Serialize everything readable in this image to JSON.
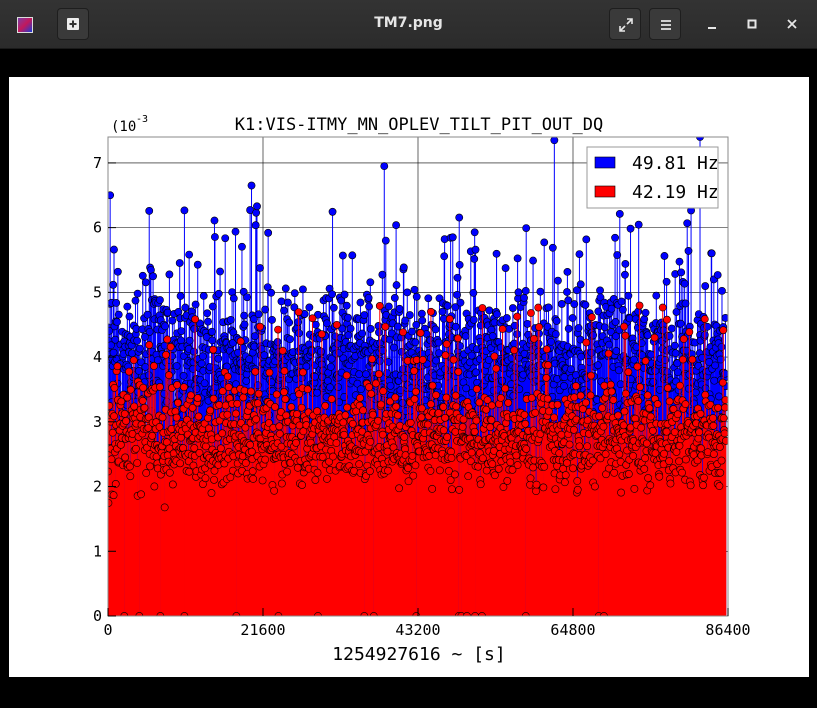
{
  "window": {
    "title": "TM7.png",
    "icons": {
      "app": "image-viewer-icon",
      "new": "new-tab-icon",
      "fullscreen": "fullscreen-icon",
      "menu": "hamburger-menu-icon",
      "minimize": "minimize-icon",
      "maximize": "maximize-icon",
      "close": "close-icon"
    }
  },
  "chart_data": {
    "type": "scatter",
    "title": "K1:VIS-ITMY_MN_OPLEV_TILT_PIT_OUT_DQ",
    "xlabel": "1254927616 ~ [s]",
    "ylabel": "",
    "y_exponent_label": "(10",
    "y_exponent_power": "-3",
    "xlim": [
      0,
      86400
    ],
    "ylim": [
      0,
      7.4
    ],
    "x_ticks": [
      "0",
      "21600",
      "43200",
      "64800",
      "86400"
    ],
    "y_ticks": [
      "0",
      "1",
      "2",
      "3",
      "4",
      "5",
      "6",
      "7"
    ],
    "grid": true,
    "legend_position": "top-right",
    "series": [
      {
        "name": "49.81 Hz",
        "color": "#0000ff",
        "style": "stem",
        "y_band_typical": [
          3.0,
          5.0
        ],
        "peaks": [
          {
            "x": 300,
            "y": 6.5
          },
          {
            "x": 20000,
            "y": 6.65
          },
          {
            "x": 38500,
            "y": 6.95
          },
          {
            "x": 62200,
            "y": 7.35
          },
          {
            "x": 82500,
            "y": 7.4
          }
        ]
      },
      {
        "name": "42.19 Hz",
        "color": "#ff0000",
        "style": "stem",
        "y_band_typical": [
          2.0,
          3.5
        ],
        "peaks": [
          {
            "x": 28500,
            "y": 4.6
          },
          {
            "x": 45000,
            "y": 4.7
          }
        ]
      }
    ]
  }
}
